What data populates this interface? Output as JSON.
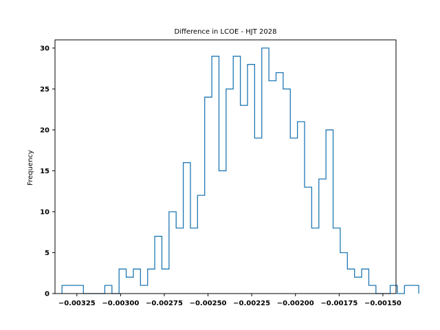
{
  "chart_data": {
    "type": "histogram",
    "title": "Difference in LCOE - HJT 2028",
    "xlabel": "",
    "ylabel": "Frequency",
    "xlim": [
      -0.003375,
      -0.001425
    ],
    "ylim": [
      0,
      31
    ],
    "grid": false,
    "legend": "none",
    "series_color": "#1f77b4",
    "x_ticks": [
      -0.00325,
      -0.003,
      -0.00275,
      -0.0025,
      -0.00225,
      -0.002,
      -0.00175,
      -0.0015
    ],
    "x_tick_labels": [
      "−0.00325",
      "−0.00300",
      "−0.00275",
      "−0.00250",
      "−0.00225",
      "−0.00200",
      "−0.00175",
      "−0.00150"
    ],
    "y_ticks": [
      0,
      5,
      10,
      15,
      20,
      25,
      30
    ],
    "y_tick_labels": [
      "0",
      "5",
      "10",
      "15",
      "20",
      "25",
      "30"
    ],
    "bin_start": -0.003335,
    "bin_width": 4.08e-05,
    "counts": [
      1,
      1,
      1,
      0,
      0,
      0,
      1,
      0,
      3,
      2,
      3,
      1,
      3,
      7,
      3,
      10,
      8,
      16,
      8,
      12,
      24,
      29,
      15,
      25,
      29,
      23,
      28,
      19,
      30,
      26,
      27,
      25,
      19,
      21,
      13,
      8,
      14,
      20,
      8,
      5,
      3,
      2,
      3,
      1,
      0,
      0,
      1,
      0,
      1,
      1
    ]
  }
}
